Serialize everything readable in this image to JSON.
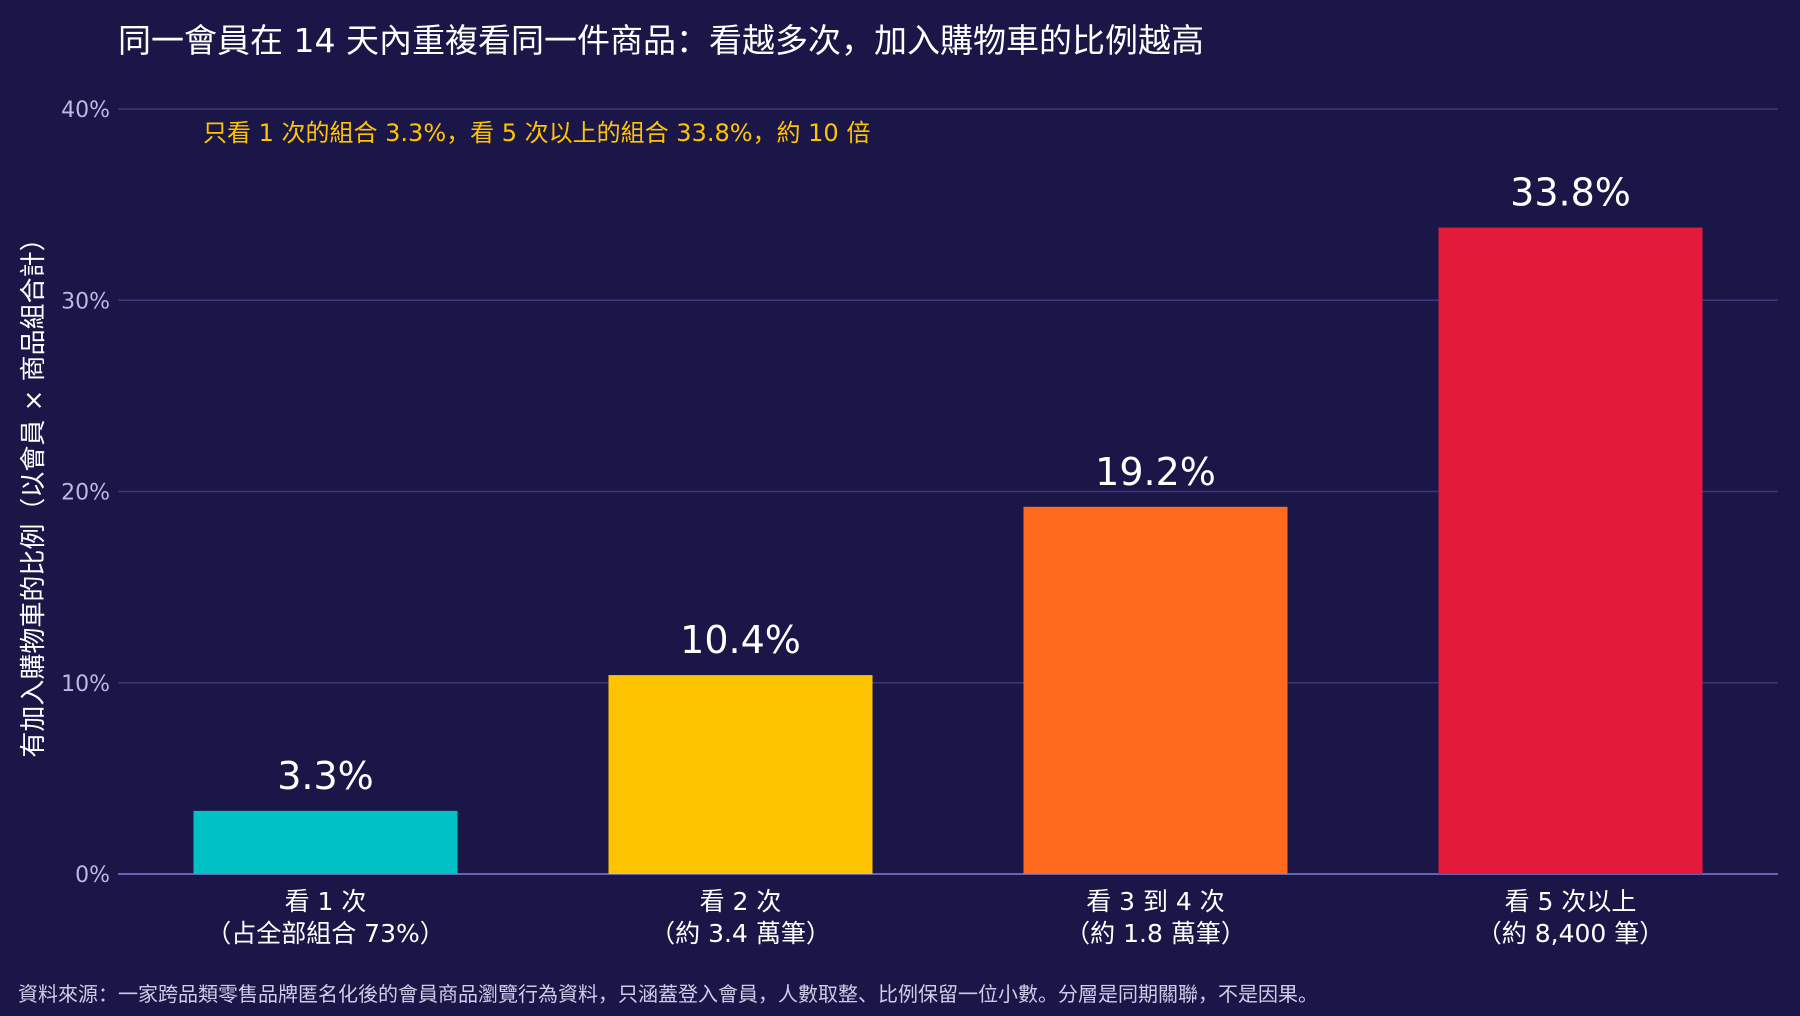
{
  "chart_data": {
    "type": "bar",
    "title": "同一會員在 14 天內重複看同一件商品：看越多次，加入購物車的比例越高",
    "annotation": "只看 1 次的組合 3.3%，看 5 次以上的組合 33.8%，約 10 倍",
    "ylabel": "有加入購物車的比例（以會員 × 商品組合計）",
    "xlabel": "",
    "ylim": [
      0,
      40
    ],
    "yticks": [
      0,
      10,
      20,
      30,
      40
    ],
    "ytick_labels": [
      "0%",
      "10%",
      "20%",
      "30%",
      "40%"
    ],
    "grid": true,
    "categories": [
      [
        "看 1 次",
        "（占全部組合 73%）"
      ],
      [
        "看 2 次",
        "（約 3.4 萬筆）"
      ],
      [
        "看 3 到 4 次",
        "（約 1.8 萬筆）"
      ],
      [
        "看 5 次以上",
        "（約 8,400 筆）"
      ]
    ],
    "values": [
      3.3,
      10.4,
      19.2,
      33.8
    ],
    "value_labels": [
      "3.3%",
      "10.4%",
      "19.2%",
      "33.8%"
    ],
    "colors": [
      "#00c1c4",
      "#ffc400",
      "#ff6a1f",
      "#e31b3a"
    ],
    "source": "資料來源：一家跨品類零售品牌匿名化後的會員商品瀏覽行為資料，只涵蓋登入會員，人數取整、比例保留一位小數。分層是同期關聯，不是因果。"
  },
  "theme": {
    "background": "#1b1648",
    "grid_color": "#3d3775",
    "axis_color": "#6a63b5",
    "tick_color": "#bdb8e2",
    "annotation_color": "#ffc400"
  }
}
